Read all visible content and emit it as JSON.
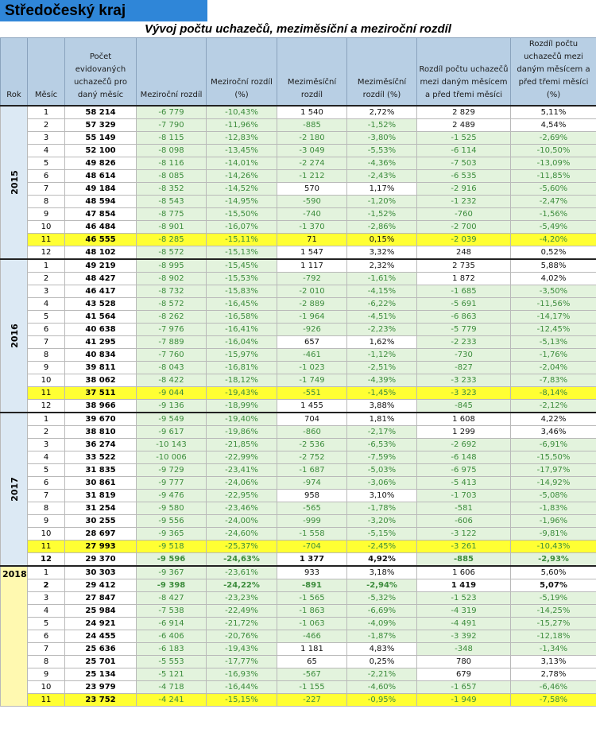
{
  "region_title": "Středočeský kraj",
  "table_title": "Vývoj počtu uchazečů, meziměsíční a meziroční rozdíl",
  "headers": [
    "Rok",
    "Měsíc",
    "Počet evidovaných uchazečů pro daný měsíc",
    "Meziroční rozdíl",
    "Meziroční rozdíl (%)",
    "Meziměsíční rozdíl",
    "Meziměsíční rozdíl (%)",
    "Rozdíl počtu uchazečů mezi daným měsícem a před třemi měsíci",
    "Rozdíl počtu uchazečů mezi daným měsícem a před třemi měsíci (%)"
  ],
  "colors": {
    "title_bg": "#2f86d8",
    "header_bg": "#b8cfe4",
    "negative_cell_bg": "#e3f3dd",
    "highlight_bg": "#ffff33",
    "year_bg": "#dce9f4",
    "year_2018_bg": "#fff9b0"
  },
  "years": [
    {
      "year": "2015",
      "rows": [
        {
          "m": "1",
          "n": "58 214",
          "yoy": "-6 779",
          "yoyp": "-10,43%",
          "mom": "1 540",
          "momp": "2,72%",
          "q": "2 829",
          "qp": "5,11%"
        },
        {
          "m": "2",
          "n": "57 329",
          "yoy": "-7 790",
          "yoyp": "-11,96%",
          "mom": "-885",
          "momp": "-1,52%",
          "q": "2 489",
          "qp": "4,54%"
        },
        {
          "m": "3",
          "n": "55 149",
          "yoy": "-8 115",
          "yoyp": "-12,83%",
          "mom": "-2 180",
          "momp": "-3,80%",
          "q": "-1 525",
          "qp": "-2,69%"
        },
        {
          "m": "4",
          "n": "52 100",
          "yoy": "-8 098",
          "yoyp": "-13,45%",
          "mom": "-3 049",
          "momp": "-5,53%",
          "q": "-6 114",
          "qp": "-10,50%"
        },
        {
          "m": "5",
          "n": "49 826",
          "yoy": "-8 116",
          "yoyp": "-14,01%",
          "mom": "-2 274",
          "momp": "-4,36%",
          "q": "-7 503",
          "qp": "-13,09%"
        },
        {
          "m": "6",
          "n": "48 614",
          "yoy": "-8 085",
          "yoyp": "-14,26%",
          "mom": "-1 212",
          "momp": "-2,43%",
          "q": "-6 535",
          "qp": "-11,85%"
        },
        {
          "m": "7",
          "n": "49 184",
          "yoy": "-8 352",
          "yoyp": "-14,52%",
          "mom": "570",
          "momp": "1,17%",
          "q": "-2 916",
          "qp": "-5,60%"
        },
        {
          "m": "8",
          "n": "48 594",
          "yoy": "-8 543",
          "yoyp": "-14,95%",
          "mom": "-590",
          "momp": "-1,20%",
          "q": "-1 232",
          "qp": "-2,47%"
        },
        {
          "m": "9",
          "n": "47 854",
          "yoy": "-8 775",
          "yoyp": "-15,50%",
          "mom": "-740",
          "momp": "-1,52%",
          "q": "-760",
          "qp": "-1,56%"
        },
        {
          "m": "10",
          "n": "46 484",
          "yoy": "-8 901",
          "yoyp": "-16,07%",
          "mom": "-1 370",
          "momp": "-2,86%",
          "q": "-2 700",
          "qp": "-5,49%"
        },
        {
          "m": "11",
          "n": "46 555",
          "yoy": "-8 285",
          "yoyp": "-15,11%",
          "mom": "71",
          "momp": "0,15%",
          "q": "-2 039",
          "qp": "-4,20%",
          "hl": true
        },
        {
          "m": "12",
          "n": "48 102",
          "yoy": "-8 572",
          "yoyp": "-15,13%",
          "mom": "1 547",
          "momp": "3,32%",
          "q": "248",
          "qp": "0,52%"
        }
      ]
    },
    {
      "year": "2016",
      "rows": [
        {
          "m": "1",
          "n": "49 219",
          "yoy": "-8 995",
          "yoyp": "-15,45%",
          "mom": "1 117",
          "momp": "2,32%",
          "q": "2 735",
          "qp": "5,88%"
        },
        {
          "m": "2",
          "n": "48 427",
          "yoy": "-8 902",
          "yoyp": "-15,53%",
          "mom": "-792",
          "momp": "-1,61%",
          "q": "1 872",
          "qp": "4,02%"
        },
        {
          "m": "3",
          "n": "46 417",
          "yoy": "-8 732",
          "yoyp": "-15,83%",
          "mom": "-2 010",
          "momp": "-4,15%",
          "q": "-1 685",
          "qp": "-3,50%"
        },
        {
          "m": "4",
          "n": "43 528",
          "yoy": "-8 572",
          "yoyp": "-16,45%",
          "mom": "-2 889",
          "momp": "-6,22%",
          "q": "-5 691",
          "qp": "-11,56%"
        },
        {
          "m": "5",
          "n": "41 564",
          "yoy": "-8 262",
          "yoyp": "-16,58%",
          "mom": "-1 964",
          "momp": "-4,51%",
          "q": "-6 863",
          "qp": "-14,17%"
        },
        {
          "m": "6",
          "n": "40 638",
          "yoy": "-7 976",
          "yoyp": "-16,41%",
          "mom": "-926",
          "momp": "-2,23%",
          "q": "-5 779",
          "qp": "-12,45%"
        },
        {
          "m": "7",
          "n": "41 295",
          "yoy": "-7 889",
          "yoyp": "-16,04%",
          "mom": "657",
          "momp": "1,62%",
          "q": "-2 233",
          "qp": "-5,13%"
        },
        {
          "m": "8",
          "n": "40 834",
          "yoy": "-7 760",
          "yoyp": "-15,97%",
          "mom": "-461",
          "momp": "-1,12%",
          "q": "-730",
          "qp": "-1,76%"
        },
        {
          "m": "9",
          "n": "39 811",
          "yoy": "-8 043",
          "yoyp": "-16,81%",
          "mom": "-1 023",
          "momp": "-2,51%",
          "q": "-827",
          "qp": "-2,04%"
        },
        {
          "m": "10",
          "n": "38 062",
          "yoy": "-8 422",
          "yoyp": "-18,12%",
          "mom": "-1 749",
          "momp": "-4,39%",
          "q": "-3 233",
          "qp": "-7,83%"
        },
        {
          "m": "11",
          "n": "37 511",
          "yoy": "-9 044",
          "yoyp": "-19,43%",
          "mom": "-551",
          "momp": "-1,45%",
          "q": "-3 323",
          "qp": "-8,14%",
          "hl": true
        },
        {
          "m": "12",
          "n": "38 966",
          "yoy": "-9 136",
          "yoyp": "-18,99%",
          "mom": "1 455",
          "momp": "3,88%",
          "q": "-845",
          "qp": "-2,12%"
        }
      ]
    },
    {
      "year": "2017",
      "rows": [
        {
          "m": "1",
          "n": "39 670",
          "yoy": "-9 549",
          "yoyp": "-19,40%",
          "mom": "704",
          "momp": "1,81%",
          "q": "1 608",
          "qp": "4,22%"
        },
        {
          "m": "2",
          "n": "38 810",
          "yoy": "-9 617",
          "yoyp": "-19,86%",
          "mom": "-860",
          "momp": "-2,17%",
          "q": "1 299",
          "qp": "3,46%"
        },
        {
          "m": "3",
          "n": "36 274",
          "yoy": "-10 143",
          "yoyp": "-21,85%",
          "mom": "-2 536",
          "momp": "-6,53%",
          "q": "-2 692",
          "qp": "-6,91%"
        },
        {
          "m": "4",
          "n": "33 522",
          "yoy": "-10 006",
          "yoyp": "-22,99%",
          "mom": "-2 752",
          "momp": "-7,59%",
          "q": "-6 148",
          "qp": "-15,50%"
        },
        {
          "m": "5",
          "n": "31 835",
          "yoy": "-9 729",
          "yoyp": "-23,41%",
          "mom": "-1 687",
          "momp": "-5,03%",
          "q": "-6 975",
          "qp": "-17,97%"
        },
        {
          "m": "6",
          "n": "30 861",
          "yoy": "-9 777",
          "yoyp": "-24,06%",
          "mom": "-974",
          "momp": "-3,06%",
          "q": "-5 413",
          "qp": "-14,92%"
        },
        {
          "m": "7",
          "n": "31 819",
          "yoy": "-9 476",
          "yoyp": "-22,95%",
          "mom": "958",
          "momp": "3,10%",
          "q": "-1 703",
          "qp": "-5,08%"
        },
        {
          "m": "8",
          "n": "31 254",
          "yoy": "-9 580",
          "yoyp": "-23,46%",
          "mom": "-565",
          "momp": "-1,78%",
          "q": "-581",
          "qp": "-1,83%"
        },
        {
          "m": "9",
          "n": "30 255",
          "yoy": "-9 556",
          "yoyp": "-24,00%",
          "mom": "-999",
          "momp": "-3,20%",
          "q": "-606",
          "qp": "-1,96%"
        },
        {
          "m": "10",
          "n": "28 697",
          "yoy": "-9 365",
          "yoyp": "-24,60%",
          "mom": "-1 558",
          "momp": "-5,15%",
          "q": "-3 122",
          "qp": "-9,81%"
        },
        {
          "m": "11",
          "n": "27 993",
          "yoy": "-9 518",
          "yoyp": "-25,37%",
          "mom": "-704",
          "momp": "-2,45%",
          "q": "-3 261",
          "qp": "-10,43%",
          "hl": true
        },
        {
          "m": "12",
          "n": "29 370",
          "yoy": "-9 596",
          "yoyp": "-24,63%",
          "mom": "1 377",
          "momp": "4,92%",
          "q": "-885",
          "qp": "-2,93%",
          "bold": true
        }
      ]
    },
    {
      "year": "2018",
      "rows": [
        {
          "m": "1",
          "n": "30 303",
          "yoy": "-9 367",
          "yoyp": "-23,61%",
          "mom": "933",
          "momp": "3,18%",
          "q": "1 606",
          "qp": "5,60%"
        },
        {
          "m": "2",
          "n": "29 412",
          "yoy": "-9 398",
          "yoyp": "-24,22%",
          "mom": "-891",
          "momp": "-2,94%",
          "q": "1 419",
          "qp": "5,07%",
          "bold": true
        },
        {
          "m": "3",
          "n": "27 847",
          "yoy": "-8 427",
          "yoyp": "-23,23%",
          "mom": "-1 565",
          "momp": "-5,32%",
          "q": "-1 523",
          "qp": "-5,19%"
        },
        {
          "m": "4",
          "n": "25 984",
          "yoy": "-7 538",
          "yoyp": "-22,49%",
          "mom": "-1 863",
          "momp": "-6,69%",
          "q": "-4 319",
          "qp": "-14,25%"
        },
        {
          "m": "5",
          "n": "24 921",
          "yoy": "-6 914",
          "yoyp": "-21,72%",
          "mom": "-1 063",
          "momp": "-4,09%",
          "q": "-4 491",
          "qp": "-15,27%"
        },
        {
          "m": "6",
          "n": "24 455",
          "yoy": "-6 406",
          "yoyp": "-20,76%",
          "mom": "-466",
          "momp": "-1,87%",
          "q": "-3 392",
          "qp": "-12,18%"
        },
        {
          "m": "7",
          "n": "25 636",
          "yoy": "-6 183",
          "yoyp": "-19,43%",
          "mom": "1 181",
          "momp": "4,83%",
          "q": "-348",
          "qp": "-1,34%"
        },
        {
          "m": "8",
          "n": "25 701",
          "yoy": "-5 553",
          "yoyp": "-17,77%",
          "mom": "65",
          "momp": "0,25%",
          "q": "780",
          "qp": "3,13%"
        },
        {
          "m": "9",
          "n": "25 134",
          "yoy": "-5 121",
          "yoyp": "-16,93%",
          "mom": "-567",
          "momp": "-2,21%",
          "q": "679",
          "qp": "2,78%"
        },
        {
          "m": "10",
          "n": "23 979",
          "yoy": "-4 718",
          "yoyp": "-16,44%",
          "mom": "-1 155",
          "momp": "-4,60%",
          "q": "-1 657",
          "qp": "-6,46%"
        },
        {
          "m": "11",
          "n": "23 752",
          "yoy": "-4 241",
          "yoyp": "-15,15%",
          "mom": "-227",
          "momp": "-0,95%",
          "q": "-1 949",
          "qp": "-7,58%",
          "hl": true
        }
      ]
    }
  ]
}
